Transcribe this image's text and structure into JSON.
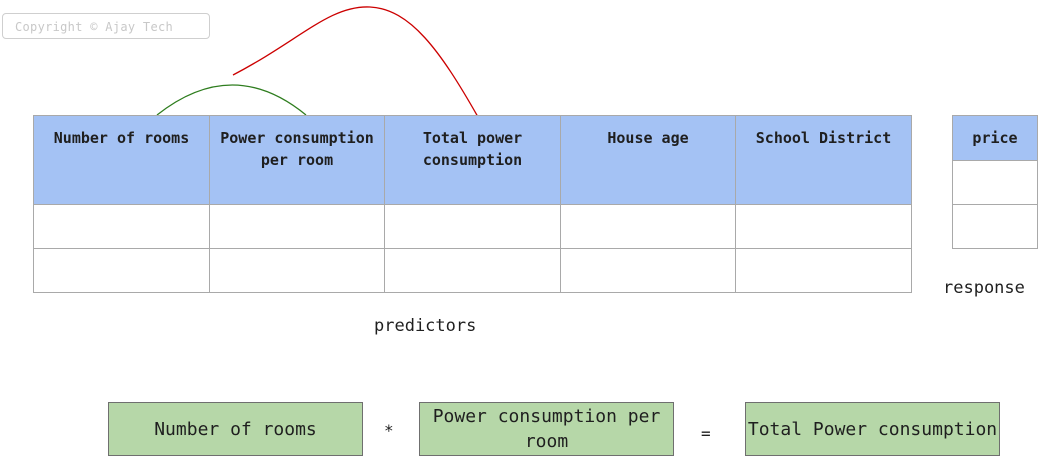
{
  "watermark": "Copyright © Ajay Tech",
  "predictors_table": {
    "headers": [
      "Number of rooms",
      "Power consumption per room",
      "Total power consumption",
      "House age",
      "School District"
    ],
    "rows": [
      [
        "",
        "",
        "",
        "",
        ""
      ],
      [
        "",
        "",
        "",
        "",
        ""
      ]
    ]
  },
  "response_table": {
    "header": "price",
    "rows": [
      [
        ""
      ],
      [
        ""
      ]
    ]
  },
  "labels": {
    "predictors": "predictors",
    "response": "response"
  },
  "equation": {
    "term1": "Number of rooms",
    "op1": "*",
    "term2": "Power consumption per room",
    "op2": "=",
    "result": "Total Power consumption"
  },
  "colors": {
    "header_fill": "#a4c2f4",
    "equation_fill": "#b6d7a8",
    "arc_green": "#2e7d1e",
    "arc_red": "#cc0000"
  }
}
